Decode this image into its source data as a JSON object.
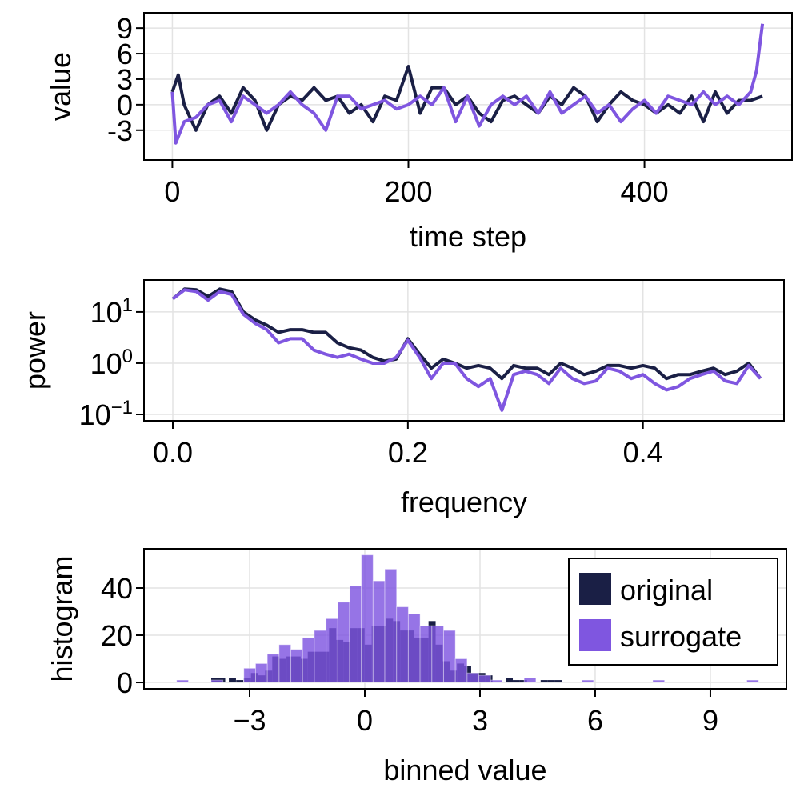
{
  "colors": {
    "original": "#1a1f45",
    "surrogate": "#7f56e0",
    "grid": "#e3e3e3"
  },
  "chart_data": [
    {
      "type": "line",
      "xlabel": "time step",
      "ylabel": "value",
      "xlim": [
        -24,
        525
      ],
      "ylim": [
        -6.5,
        10.8
      ],
      "xticks": [
        0,
        200,
        400
      ],
      "yticks": [
        -3,
        0,
        3,
        6,
        9
      ],
      "grid": true,
      "series": [
        {
          "key": "original",
          "x": [
            0,
            5,
            10,
            20,
            30,
            40,
            50,
            60,
            70,
            80,
            90,
            100,
            110,
            120,
            130,
            140,
            150,
            160,
            170,
            180,
            190,
            200,
            210,
            220,
            230,
            240,
            250,
            260,
            270,
            280,
            290,
            300,
            310,
            320,
            330,
            340,
            350,
            360,
            370,
            380,
            390,
            400,
            410,
            420,
            430,
            440,
            450,
            460,
            470,
            480,
            490,
            500
          ],
          "y": [
            1.5,
            3.5,
            0,
            -3,
            0,
            1,
            -1,
            2,
            0.5,
            -3,
            0,
            1,
            0.5,
            2,
            0.5,
            1,
            -1,
            0,
            -2,
            1,
            0.5,
            4.5,
            -1,
            2,
            2,
            0,
            1,
            -1,
            -2,
            0.5,
            1,
            0,
            -1,
            1,
            0,
            2,
            1,
            -2,
            0,
            1.5,
            0.5,
            0,
            -1,
            0,
            -1,
            1,
            -2,
            1.5,
            -1,
            0.5,
            0.5,
            1
          ]
        },
        {
          "key": "surrogate",
          "x": [
            0,
            3,
            10,
            20,
            30,
            40,
            50,
            60,
            70,
            80,
            90,
            100,
            110,
            120,
            130,
            140,
            150,
            160,
            170,
            180,
            190,
            200,
            210,
            220,
            230,
            240,
            250,
            260,
            270,
            280,
            290,
            300,
            310,
            320,
            330,
            340,
            350,
            360,
            370,
            380,
            390,
            400,
            410,
            420,
            430,
            440,
            450,
            460,
            470,
            480,
            490,
            495,
            500
          ],
          "y": [
            1.5,
            -4.5,
            -2,
            -1.5,
            0,
            0.5,
            -2,
            1,
            0,
            -1,
            0,
            1.5,
            0,
            -1,
            -3,
            1,
            1,
            -0.5,
            0,
            0.5,
            -0.5,
            0,
            1,
            0,
            2,
            -2,
            1,
            -2.5,
            0,
            1,
            0,
            1,
            -1,
            1.5,
            -1,
            0,
            1,
            -1,
            0,
            -2,
            -0.5,
            0.5,
            -1,
            1,
            0.5,
            0,
            1.5,
            0,
            1,
            0,
            1.5,
            4,
            9.5
          ]
        }
      ]
    },
    {
      "type": "line",
      "xlabel": "frequency",
      "ylabel": "power",
      "yscale": "log10",
      "xlim": [
        -0.0245,
        0.52
      ],
      "ylim": [
        0.075,
        42
      ],
      "xticks": [
        "0.0",
        "0.2",
        "0.4"
      ],
      "yticks": [
        {
          "value": 0.1,
          "base": "10",
          "exp": "−1"
        },
        {
          "value": 1,
          "base": "10",
          "exp": "0"
        },
        {
          "value": 10,
          "base": "10",
          "exp": "1"
        }
      ],
      "grid": true,
      "series": [
        {
          "key": "original",
          "x": [
            0,
            0.01,
            0.02,
            0.03,
            0.04,
            0.05,
            0.06,
            0.07,
            0.08,
            0.09,
            0.1,
            0.11,
            0.12,
            0.13,
            0.14,
            0.15,
            0.16,
            0.17,
            0.18,
            0.19,
            0.2,
            0.21,
            0.22,
            0.23,
            0.24,
            0.25,
            0.26,
            0.27,
            0.28,
            0.29,
            0.3,
            0.31,
            0.32,
            0.33,
            0.34,
            0.35,
            0.36,
            0.37,
            0.38,
            0.39,
            0.4,
            0.41,
            0.42,
            0.43,
            0.44,
            0.45,
            0.46,
            0.47,
            0.48,
            0.49,
            0.5
          ],
          "y": [
            18,
            28,
            27,
            20,
            28,
            25,
            10,
            7,
            5.5,
            4,
            4.5,
            4.5,
            4,
            4,
            2.5,
            2,
            1.8,
            1.3,
            1.1,
            1.2,
            3,
            1.5,
            0.8,
            1.2,
            1,
            0.8,
            0.9,
            0.8,
            0.5,
            0.9,
            0.8,
            0.8,
            0.6,
            1.0,
            0.8,
            0.6,
            0.7,
            0.9,
            0.9,
            0.8,
            0.9,
            0.8,
            0.5,
            0.6,
            0.6,
            0.7,
            0.8,
            0.6,
            0.7,
            1.0,
            0.5
          ]
        },
        {
          "key": "surrogate",
          "x": [
            0,
            0.01,
            0.02,
            0.03,
            0.04,
            0.05,
            0.06,
            0.07,
            0.08,
            0.09,
            0.1,
            0.11,
            0.12,
            0.13,
            0.14,
            0.15,
            0.16,
            0.17,
            0.18,
            0.19,
            0.2,
            0.21,
            0.22,
            0.23,
            0.24,
            0.25,
            0.26,
            0.27,
            0.28,
            0.29,
            0.3,
            0.31,
            0.32,
            0.33,
            0.34,
            0.35,
            0.36,
            0.37,
            0.38,
            0.39,
            0.4,
            0.41,
            0.42,
            0.43,
            0.44,
            0.45,
            0.46,
            0.47,
            0.48,
            0.49,
            0.5
          ],
          "y": [
            18,
            27,
            25,
            17,
            25,
            22,
            9,
            6,
            4.5,
            2.5,
            3,
            3,
            1.8,
            1.5,
            1.3,
            1.5,
            1.2,
            1.0,
            1.0,
            1.3,
            2.8,
            1.3,
            0.5,
            1.0,
            1.0,
            0.5,
            0.35,
            0.5,
            0.12,
            0.6,
            0.7,
            0.6,
            0.4,
            0.8,
            0.5,
            0.4,
            0.45,
            0.8,
            0.7,
            0.5,
            0.6,
            0.4,
            0.3,
            0.35,
            0.5,
            0.6,
            0.7,
            0.45,
            0.4,
            0.9,
            0.5
          ]
        }
      ]
    },
    {
      "type": "bar",
      "subtype": "histogram",
      "xlabel": "binned value",
      "ylabel": "histogram",
      "xlim": [
        -5.75,
        10.98
      ],
      "ylim": [
        -2.7,
        56.6
      ],
      "xticks": [
        "−3",
        "0",
        "3",
        "6",
        "9"
      ],
      "xtick_values": [
        -3,
        0,
        3,
        6,
        9
      ],
      "yticks": [
        0,
        20,
        40
      ],
      "grid": true,
      "legend": {
        "placement": "top-right",
        "entries": [
          {
            "key": "original",
            "label": "original"
          },
          {
            "key": "surrogate",
            "label": "surrogate"
          }
        ]
      },
      "series": [
        {
          "key": "original",
          "name": "original",
          "bin_width": 0.185,
          "bins": [
            [
              -4.0,
              2
            ],
            [
              -3.82,
              2
            ],
            [
              -3.54,
              2
            ],
            [
              -3.35,
              1
            ],
            [
              -3.15,
              2
            ],
            [
              -2.965,
              4
            ],
            [
              -2.78,
              3
            ],
            [
              -2.595,
              5
            ],
            [
              -2.41,
              11
            ],
            [
              -2.225,
              10
            ],
            [
              -2.04,
              11
            ],
            [
              -1.855,
              11
            ],
            [
              -1.67,
              10
            ],
            [
              -1.485,
              13
            ],
            [
              -1.3,
              13
            ],
            [
              -1.115,
              13
            ],
            [
              -0.93,
              23
            ],
            [
              -0.745,
              18
            ],
            [
              -0.56,
              17
            ],
            [
              -0.375,
              23
            ],
            [
              -0.19,
              23
            ],
            [
              -0.005,
              16
            ],
            [
              0.18,
              24
            ],
            [
              0.365,
              24
            ],
            [
              0.55,
              27
            ],
            [
              0.735,
              26
            ],
            [
              0.92,
              22
            ],
            [
              1.105,
              22
            ],
            [
              1.29,
              19
            ],
            [
              1.475,
              19
            ],
            [
              1.66,
              26
            ],
            [
              1.845,
              16
            ],
            [
              2.03,
              9
            ],
            [
              2.215,
              5
            ],
            [
              2.4,
              8
            ],
            [
              2.585,
              7
            ],
            [
              2.77,
              4
            ],
            [
              2.955,
              4
            ],
            [
              3.14,
              3
            ],
            [
              3.67,
              2
            ],
            [
              3.855,
              1
            ],
            [
              4.04,
              1
            ],
            [
              4.58,
              1
            ],
            [
              4.765,
              1
            ],
            [
              4.95,
              1
            ]
          ]
        },
        {
          "key": "surrogate",
          "name": "surrogate",
          "bin_width": 0.306,
          "bins": [
            [
              -4.9,
              1
            ],
            [
              -4.0,
              1
            ],
            [
              -3.15,
              6
            ],
            [
              -2.844,
              8
            ],
            [
              -2.538,
              12
            ],
            [
              -2.232,
              16
            ],
            [
              -1.926,
              14
            ],
            [
              -1.62,
              19
            ],
            [
              -1.314,
              22
            ],
            [
              -1.008,
              27
            ],
            [
              -0.702,
              34
            ],
            [
              -0.396,
              41
            ],
            [
              -0.09,
              54
            ],
            [
              0.216,
              43
            ],
            [
              0.522,
              48
            ],
            [
              0.828,
              32
            ],
            [
              1.134,
              29
            ],
            [
              1.44,
              24
            ],
            [
              1.746,
              24
            ],
            [
              2.052,
              22
            ],
            [
              2.358,
              10
            ],
            [
              2.664,
              4
            ],
            [
              2.97,
              3
            ],
            [
              3.276,
              1
            ],
            [
              4.15,
              2
            ],
            [
              5.65,
              1
            ],
            [
              7.5,
              1
            ],
            [
              9.95,
              1
            ]
          ]
        }
      ]
    }
  ]
}
